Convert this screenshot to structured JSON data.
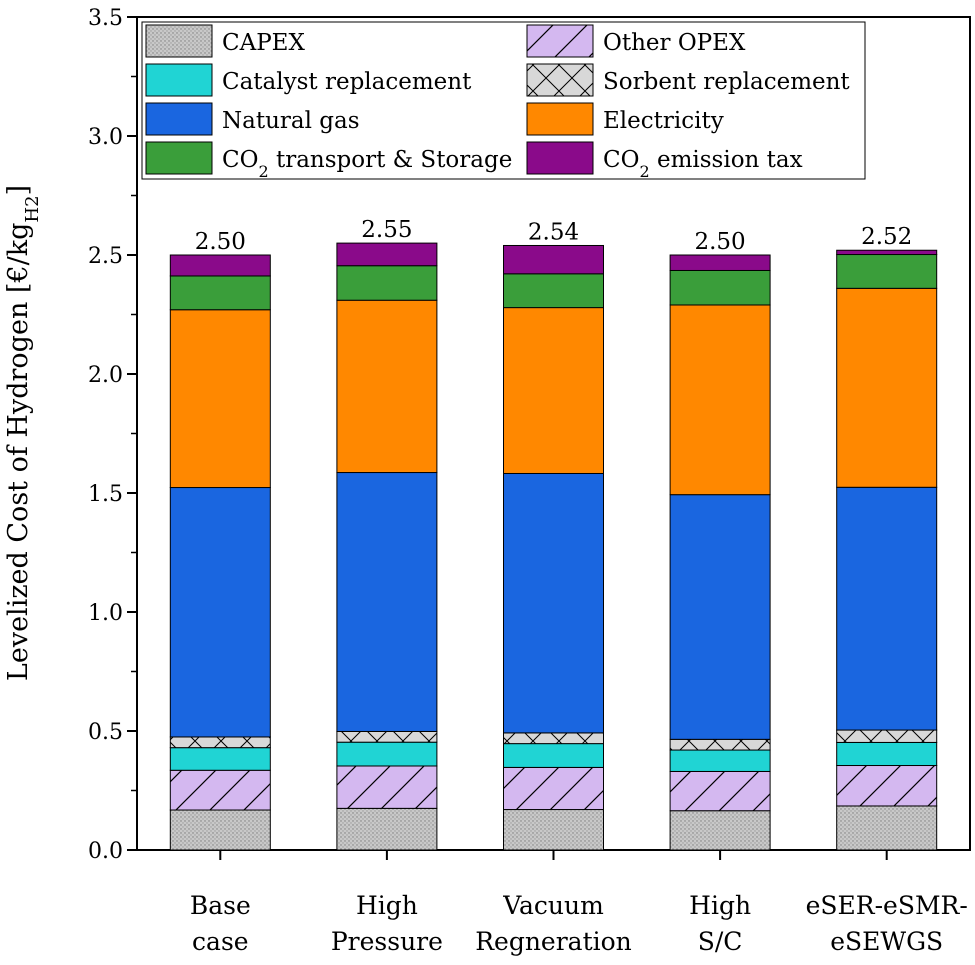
{
  "chart_data": {
    "type": "bar",
    "stacked": true,
    "ylabel": "Levelized Cost of Hydrogen [€/kg",
    "ylabel_sub": "H2",
    "ylabel_end": "]",
    "ylim": [
      0,
      3.5
    ],
    "yticks": [
      "0.0",
      "0.5",
      "1.0",
      "1.5",
      "2.0",
      "2.5",
      "3.0",
      "3.5"
    ],
    "categories": [
      [
        "Base",
        "case"
      ],
      [
        "High",
        "Pressure"
      ],
      [
        "Vacuum",
        "Regneration"
      ],
      [
        "High",
        "S/C"
      ],
      [
        "eSER-eSMR-",
        "eSEWGS"
      ]
    ],
    "totals": [
      "2.50",
      "2.55",
      "2.54",
      "2.50",
      "2.52"
    ],
    "legend_position": "top",
    "series": [
      {
        "key": "capex",
        "name": "CAPEX",
        "color": "#c8c8c8",
        "pattern": "dots",
        "values": [
          0.168,
          0.175,
          0.17,
          0.165,
          0.185
        ]
      },
      {
        "key": "other_opex",
        "name": "Other OPEX",
        "color": "#d4b8f0",
        "pattern": "diagonal",
        "values": [
          0.167,
          0.178,
          0.177,
          0.165,
          0.17
        ]
      },
      {
        "key": "catalyst",
        "name": "Catalyst replacement",
        "color": "#20d4d4",
        "pattern": "none",
        "values": [
          0.095,
          0.1,
          0.1,
          0.09,
          0.097
        ]
      },
      {
        "key": "sorbent",
        "name": "Sorbent replacement",
        "color": "#d8d8d8",
        "pattern": "cross",
        "values": [
          0.045,
          0.045,
          0.045,
          0.045,
          0.052
        ]
      },
      {
        "key": "natural_gas",
        "name": "Natural gas",
        "color": "#1a66e0",
        "pattern": "none",
        "values": [
          1.048,
          1.088,
          1.09,
          1.028,
          1.02
        ]
      },
      {
        "key": "electricity",
        "name": "Electricity",
        "color": "#ff8800",
        "pattern": "none",
        "values": [
          0.747,
          0.724,
          0.697,
          0.797,
          0.836
        ]
      },
      {
        "key": "co2_transport",
        "name": "CO",
        "name_sub": "2",
        "name_rest": " transport & Storage",
        "color": "#3a9e3a",
        "pattern": "none",
        "values": [
          0.142,
          0.145,
          0.142,
          0.145,
          0.142
        ]
      },
      {
        "key": "co2_tax",
        "name": "CO",
        "name_sub": "2",
        "name_rest": " emission tax",
        "color": "#8a0a8a",
        "pattern": "none",
        "values": [
          0.088,
          0.095,
          0.119,
          0.065,
          0.018
        ]
      }
    ],
    "legend_order": [
      "capex",
      "other_opex",
      "catalyst",
      "sorbent",
      "natural_gas",
      "electricity",
      "co2_transport",
      "co2_tax"
    ]
  }
}
